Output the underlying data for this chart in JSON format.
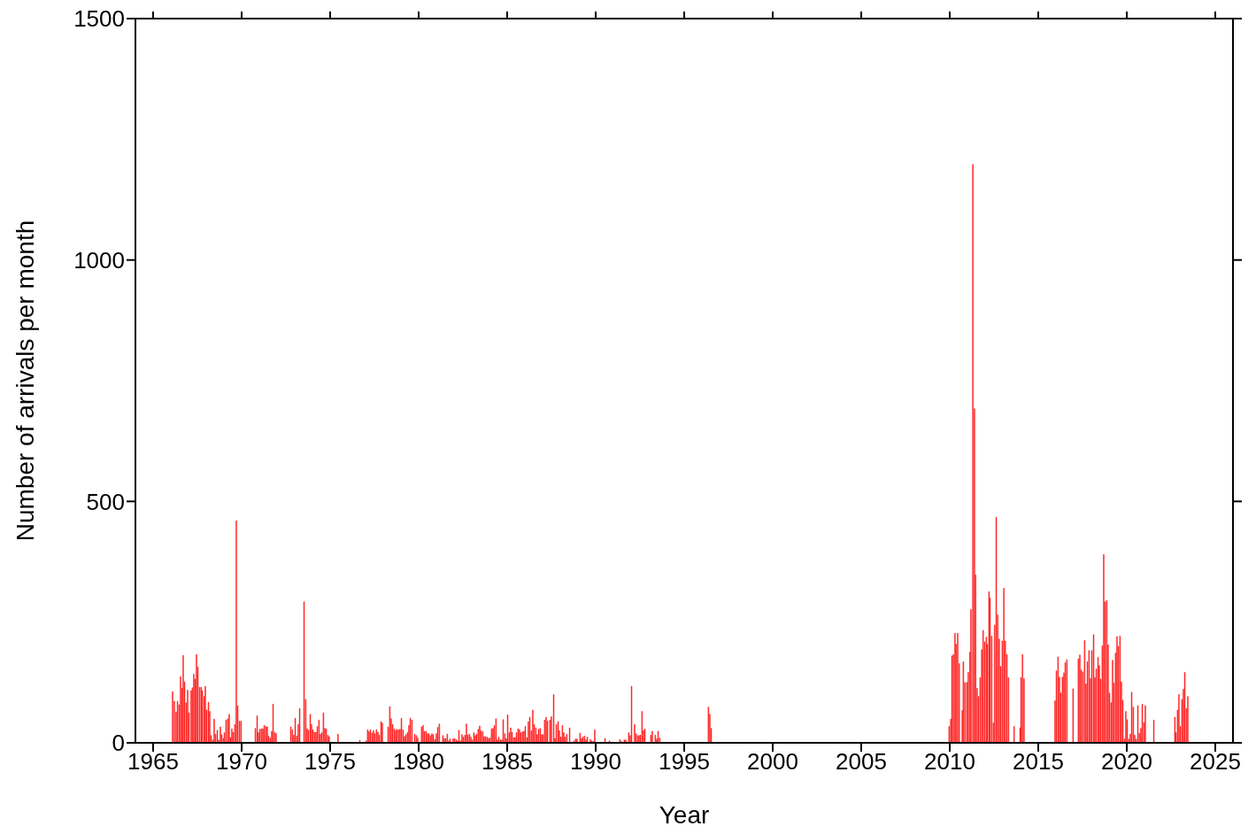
{
  "chart_data": {
    "type": "bar",
    "xlabel": "Year",
    "ylabel": "Number of arrivals per month",
    "color": "#ff1a1a",
    "xlim": [
      1964,
      2026
    ],
    "xticks": [
      1965,
      1970,
      1975,
      1980,
      1985,
      1990,
      1995,
      2000,
      2005,
      2010,
      2015,
      2020,
      2025
    ],
    "ylim": [
      0,
      1500
    ],
    "yticks": [
      0,
      500,
      1000,
      1500
    ],
    "grid": false,
    "legend": false,
    "x": [
      1966.1,
      1966.2,
      1966.3,
      1966.38,
      1966.47,
      1966.55,
      1966.63,
      1966.7,
      1966.78,
      1966.87,
      1966.95,
      1967.03,
      1967.15,
      1967.22,
      1967.3,
      1967.38,
      1967.45,
      1967.53,
      1967.63,
      1967.72,
      1967.78,
      1967.88,
      1967.95,
      1968.03,
      1968.13,
      1968.2,
      1968.28,
      1968.37,
      1968.45,
      1968.53,
      1968.63,
      1968.7,
      1968.8,
      1968.88,
      1968.97,
      1969.03,
      1969.12,
      1969.22,
      1969.3,
      1969.38,
      1969.45,
      1969.53,
      1969.62,
      1969.7,
      1969.78,
      1969.88,
      1969.97,
      1970.78,
      1970.88,
      1970.95,
      1971.03,
      1971.12,
      1971.2,
      1971.28,
      1971.37,
      1971.45,
      1971.53,
      1971.62,
      1971.7,
      1971.78,
      1971.87,
      1971.95,
      1972.78,
      1972.87,
      1972.95,
      1973.03,
      1973.12,
      1973.2,
      1973.28,
      1973.53,
      1973.62,
      1973.7,
      1973.78,
      1973.88,
      1973.95,
      1974.03,
      1974.12,
      1974.2,
      1974.28,
      1974.37,
      1974.45,
      1974.53,
      1974.62,
      1974.7,
      1974.78,
      1974.87,
      1974.95,
      1975.45,
      1976.68,
      1977.03,
      1977.12,
      1977.2,
      1977.28,
      1977.37,
      1977.45,
      1977.53,
      1977.62,
      1977.7,
      1977.78,
      1977.88,
      1977.95,
      1978.28,
      1978.37,
      1978.45,
      1978.53,
      1978.62,
      1978.7,
      1978.78,
      1978.87,
      1978.95,
      1979.03,
      1979.12,
      1979.2,
      1979.28,
      1979.37,
      1979.45,
      1979.53,
      1979.62,
      1979.78,
      1979.87,
      1979.95,
      1980.17,
      1980.25,
      1980.33,
      1980.42,
      1980.5,
      1980.58,
      1980.67,
      1980.75,
      1980.83,
      1980.92,
      1981.0,
      1981.08,
      1981.17,
      1981.37,
      1981.45,
      1981.53,
      1981.62,
      1981.7,
      1981.78,
      1981.95,
      1982.03,
      1982.12,
      1982.2,
      1982.28,
      1982.37,
      1982.45,
      1982.53,
      1982.62,
      1982.7,
      1982.78,
      1982.87,
      1982.95,
      1983.03,
      1983.12,
      1983.2,
      1983.28,
      1983.37,
      1983.45,
      1983.53,
      1983.62,
      1983.7,
      1983.78,
      1983.87,
      1983.95,
      1984.03,
      1984.12,
      1984.2,
      1984.28,
      1984.37,
      1984.45,
      1984.53,
      1984.62,
      1984.7,
      1984.78,
      1984.87,
      1984.95,
      1985.03,
      1985.12,
      1985.2,
      1985.28,
      1985.37,
      1985.45,
      1985.53,
      1985.62,
      1985.7,
      1985.78,
      1985.87,
      1985.95,
      1986.03,
      1986.12,
      1986.2,
      1986.28,
      1986.37,
      1986.45,
      1986.53,
      1986.62,
      1986.7,
      1986.78,
      1986.87,
      1986.95,
      1987.03,
      1987.12,
      1987.2,
      1987.28,
      1987.42,
      1987.5,
      1987.63,
      1987.7,
      1987.78,
      1987.88,
      1987.95,
      1988.03,
      1988.12,
      1988.2,
      1988.28,
      1988.37,
      1988.53,
      1988.78,
      1988.87,
      1988.95,
      1989.12,
      1989.2,
      1989.28,
      1989.37,
      1989.45,
      1989.53,
      1989.7,
      1989.78,
      1989.87,
      1989.95,
      1990.12,
      1990.53,
      1990.78,
      1990.95,
      1991.2,
      1991.28,
      1991.37,
      1991.45,
      1991.62,
      1991.7,
      1991.87,
      1991.95,
      1992.03,
      1992.2,
      1992.28,
      1992.37,
      1992.45,
      1992.53,
      1992.62,
      1992.7,
      1992.78,
      1993.12,
      1993.2,
      1993.37,
      1993.45,
      1993.53,
      1993.62,
      1996.28,
      1996.37,
      1996.45,
      1996.53,
      2009.97,
      2010.06,
      2010.13,
      2010.21,
      2010.3,
      2010.36,
      2010.45,
      2010.54,
      2010.71,
      2010.77,
      2010.86,
      2010.97,
      2011.05,
      2011.14,
      2011.2,
      2011.31,
      2011.4,
      2011.46,
      2011.55,
      2011.63,
      2011.72,
      2011.81,
      2011.89,
      2011.98,
      2012.07,
      2012.13,
      2012.22,
      2012.28,
      2012.37,
      2012.47,
      2012.54,
      2012.63,
      2012.71,
      2012.8,
      2012.88,
      2012.97,
      2013.06,
      2013.14,
      2013.23,
      2013.32,
      2013.64,
      2013.98,
      2014.03,
      2014.11,
      2014.2,
      2015.95,
      2016.03,
      2016.12,
      2016.2,
      2016.28,
      2016.37,
      2016.45,
      2016.53,
      2016.62,
      2016.97,
      2017.27,
      2017.35,
      2017.43,
      2017.52,
      2017.62,
      2017.7,
      2017.78,
      2017.87,
      2017.95,
      2018.03,
      2018.13,
      2018.2,
      2018.28,
      2018.38,
      2018.45,
      2018.53,
      2018.62,
      2018.7,
      2018.78,
      2018.87,
      2018.95,
      2019.03,
      2019.12,
      2019.2,
      2019.28,
      2019.37,
      2019.45,
      2019.53,
      2019.62,
      2019.7,
      2019.78,
      2019.87,
      2019.95,
      2020.03,
      2020.12,
      2020.2,
      2020.28,
      2020.37,
      2020.45,
      2020.53,
      2020.63,
      2020.72,
      2020.8,
      2020.88,
      2020.97,
      2021.05,
      2021.53,
      2022.72,
      2022.78,
      2022.87,
      2022.95,
      2023.03,
      2023.12,
      2023.2,
      2023.28,
      2023.37,
      2023.45
    ],
    "values": [
      106,
      86,
      64,
      86,
      79,
      137,
      113,
      181,
      126,
      83,
      109,
      62,
      108,
      114,
      142,
      132,
      183,
      157,
      115,
      115,
      108,
      96,
      117,
      68,
      84,
      65,
      15,
      6,
      49,
      18,
      26,
      6,
      33,
      17,
      9,
      21,
      47,
      50,
      59,
      11,
      29,
      22,
      38,
      460,
      77,
      45,
      45,
      30,
      56,
      21,
      28,
      29,
      29,
      36,
      34,
      33,
      14,
      10,
      24,
      80,
      22,
      19,
      33,
      27,
      16,
      51,
      14,
      38,
      71,
      292,
      90,
      29,
      26,
      59,
      38,
      27,
      22,
      22,
      34,
      47,
      18,
      21,
      62,
      30,
      29,
      16,
      13,
      18,
      5,
      4,
      27,
      23,
      27,
      20,
      25,
      19,
      27,
      22,
      16,
      44,
      41,
      33,
      75,
      50,
      38,
      29,
      25,
      28,
      27,
      28,
      51,
      27,
      13,
      17,
      21,
      36,
      51,
      47,
      18,
      15,
      10,
      33,
      36,
      24,
      24,
      19,
      19,
      15,
      19,
      17,
      7,
      19,
      32,
      39,
      15,
      9,
      9,
      18,
      4,
      8,
      8,
      9,
      7,
      4,
      26,
      4,
      17,
      12,
      16,
      39,
      16,
      18,
      12,
      6,
      21,
      15,
      18,
      28,
      35,
      25,
      23,
      13,
      13,
      12,
      9,
      10,
      29,
      30,
      36,
      50,
      6,
      12,
      6,
      6,
      48,
      19,
      9,
      58,
      21,
      31,
      22,
      11,
      11,
      21,
      29,
      27,
      21,
      23,
      24,
      34,
      11,
      44,
      53,
      25,
      68,
      38,
      31,
      17,
      28,
      30,
      17,
      17,
      47,
      53,
      45,
      47,
      54,
      100,
      9,
      38,
      44,
      25,
      12,
      36,
      21,
      12,
      18,
      31,
      4,
      8,
      8,
      20,
      9,
      12,
      14,
      6,
      12,
      7,
      4,
      3,
      27,
      null,
      9,
      4,
      null,
      null,
      null,
      7,
      3,
      6,
      6,
      21,
      15,
      117,
      38,
      19,
      15,
      15,
      16,
      65,
      25,
      29,
      16,
      24,
      16,
      8,
      24,
      10,
      null,
      74,
      59,
      30,
      34,
      49,
      180,
      183,
      227,
      204,
      227,
      164,
      67,
      168,
      125,
      125,
      146,
      188,
      276,
      1198,
      692,
      348,
      113,
      96,
      135,
      193,
      233,
      209,
      219,
      204,
      313,
      300,
      221,
      41,
      244,
      467,
      265,
      215,
      158,
      211,
      320,
      211,
      183,
      135,
      34,
      31,
      135,
      183,
      133,
      87,
      149,
      178,
      136,
      103,
      136,
      145,
      166,
      172,
      112,
      174,
      182,
      151,
      147,
      212,
      122,
      168,
      191,
      133,
      191,
      224,
      135,
      153,
      177,
      160,
      132,
      201,
      390,
      292,
      295,
      203,
      103,
      83,
      171,
      124,
      186,
      220,
      200,
      221,
      126,
      88,
      8,
      65,
      48,
      8,
      18,
      105,
      74,
      16,
      8,
      77,
      20,
      30,
      80,
      42,
      77,
      47,
      53,
      21,
      68,
      100,
      34,
      90,
      111,
      146,
      71,
      96
    ]
  }
}
